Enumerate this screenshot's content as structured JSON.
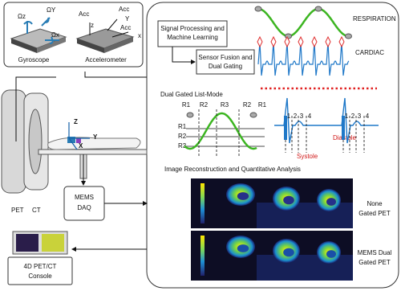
{
  "sensors": {
    "gyroscope": {
      "label": "Gyroscope",
      "axes": [
        "Ωz",
        "ΩY",
        "Ωx"
      ]
    },
    "accelerometer": {
      "label": "Accelerometer",
      "axes": [
        "Acc",
        "Acc",
        "Acc"
      ],
      "axis_subscripts": [
        "z",
        "Y",
        "x"
      ]
    }
  },
  "processing": {
    "signal_processing": [
      "Signal Processing and",
      "Machine Learning"
    ],
    "sensor_fusion": [
      "Sensor Fusion and",
      "Dual Gating"
    ]
  },
  "signals": {
    "respiration": "RESPIRATION",
    "cardiac": "CARDIAC"
  },
  "list_mode": {
    "title": "Dual Gated List-Mode",
    "top_gates": [
      "R1",
      "R2",
      "R3",
      "R2",
      "R1"
    ],
    "levels": [
      "R1",
      "R2",
      "R3"
    ],
    "phases_a": [
      "1",
      "2",
      "3",
      "4"
    ],
    "phases_b": [
      "1",
      "2",
      "3",
      "4"
    ],
    "diastole": "Diastole",
    "systole": "Systole"
  },
  "reconstruction": {
    "title": "Image Reconstruction and Quantitative Analysis",
    "rows": [
      [
        "None",
        "Gated PET"
      ],
      [
        "MEMS Dual",
        "Gated PET"
      ]
    ]
  },
  "scanner": {
    "labels": [
      "PET",
      "CT"
    ],
    "axes": [
      "Z",
      "Y",
      "X"
    ]
  },
  "daq": [
    "MEMS",
    "DAQ"
  ],
  "console": [
    "4D PET/CT",
    "Console"
  ]
}
